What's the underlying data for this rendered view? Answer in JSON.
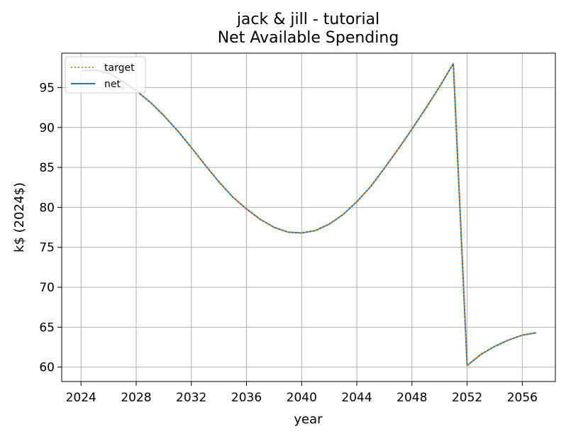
{
  "chart_data": {
    "type": "line",
    "title": "jack & jill - tutorial",
    "subtitle": "Net Available Spending",
    "xlabel": "year",
    "ylabel": "k$ (2024$)",
    "xlim": [
      2022.6,
      2058.4
    ],
    "ylim": [
      58.2,
      99.3
    ],
    "x_ticks": [
      2024,
      2028,
      2032,
      2036,
      2040,
      2044,
      2048,
      2052,
      2056
    ],
    "y_ticks": [
      60,
      65,
      70,
      75,
      80,
      85,
      90,
      95
    ],
    "grid": true,
    "legend_position": "top-left",
    "x": [
      2024,
      2025,
      2026,
      2027,
      2028,
      2029,
      2030,
      2031,
      2032,
      2033,
      2034,
      2035,
      2036,
      2037,
      2038,
      2039,
      2040,
      2041,
      2042,
      2043,
      2044,
      2045,
      2046,
      2047,
      2048,
      2049,
      2050,
      2051,
      2052,
      2053,
      2054,
      2055,
      2056,
      2057
    ],
    "series": [
      {
        "name": "target",
        "style": "dotted",
        "color": "#ff7f0e",
        "values": [
          97.1,
          97.2,
          96.8,
          95.8,
          94.6,
          93.2,
          91.5,
          89.6,
          87.5,
          85.3,
          83.2,
          81.3,
          79.8,
          78.5,
          77.5,
          76.9,
          76.8,
          77.1,
          77.9,
          79.1,
          80.7,
          82.6,
          84.9,
          87.3,
          89.8,
          92.4,
          95.1,
          98.0,
          60.2,
          61.6,
          62.6,
          63.4,
          64.0,
          64.3
        ]
      },
      {
        "name": "net",
        "style": "solid",
        "color": "#1f77b4",
        "values": [
          97.1,
          97.2,
          96.8,
          95.8,
          94.6,
          93.2,
          91.5,
          89.6,
          87.5,
          85.3,
          83.2,
          81.3,
          79.8,
          78.5,
          77.5,
          76.9,
          76.8,
          77.1,
          77.9,
          79.1,
          80.7,
          82.6,
          84.9,
          87.3,
          89.8,
          92.4,
          95.1,
          98.0,
          60.2,
          61.6,
          62.6,
          63.4,
          64.0,
          64.3
        ]
      }
    ]
  }
}
